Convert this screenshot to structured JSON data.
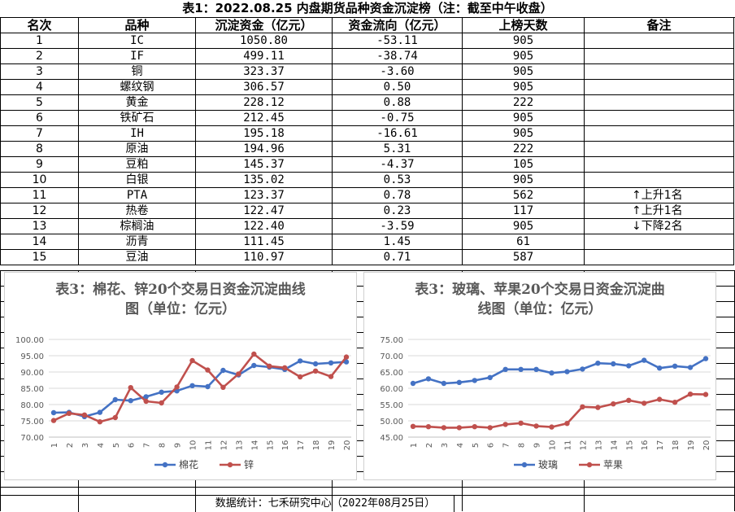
{
  "title": "表1：2022.08.25 内盘期货品种资金沉淀榜（注：截至中午收盘）",
  "headers": [
    "名次",
    "品种",
    "沉淀资金（亿元）",
    "资金流向（亿元）",
    "上榜天数",
    "备注"
  ],
  "rows": [
    [
      "1",
      "IC",
      "1050.80",
      "-53.11",
      "905",
      ""
    ],
    [
      "2",
      "IF",
      "499.11",
      "-38.74",
      "905",
      ""
    ],
    [
      "3",
      "铜",
      "323.37",
      "-3.60",
      "905",
      ""
    ],
    [
      "4",
      "螺纹钢",
      "306.57",
      "0.50",
      "905",
      ""
    ],
    [
      "5",
      "黄金",
      "228.12",
      "0.88",
      "222",
      ""
    ],
    [
      "6",
      "铁矿石",
      "212.45",
      "-0.75",
      "905",
      ""
    ],
    [
      "7",
      "IH",
      "195.18",
      "-16.61",
      "905",
      ""
    ],
    [
      "8",
      "原油",
      "194.96",
      "5.31",
      "222",
      ""
    ],
    [
      "9",
      "豆粕",
      "145.37",
      "-4.37",
      "105",
      ""
    ],
    [
      "10",
      "白银",
      "135.02",
      "0.53",
      "905",
      ""
    ],
    [
      "11",
      "PTA",
      "123.37",
      "0.78",
      "562",
      "↑上升1名"
    ],
    [
      "12",
      "热卷",
      "122.47",
      "0.23",
      "117",
      "↑上升1名"
    ],
    [
      "13",
      "棕榈油",
      "122.40",
      "-3.59",
      "905",
      "↓下降2名"
    ],
    [
      "14",
      "沥青",
      "111.45",
      "1.45",
      "61",
      ""
    ],
    [
      "15",
      "豆油",
      "110.97",
      "0.71",
      "587",
      ""
    ]
  ],
  "footer": "数据统计：七禾研究中心（2022年08月25日）",
  "chart_data": [
    {
      "type": "line",
      "title_line1": "表3：棉花、锌20个交易日资金沉淀曲线",
      "title_line2": "图（单位：亿元）",
      "x": [
        "1",
        "2",
        "3",
        "4",
        "5",
        "6",
        "7",
        "8",
        "9",
        "10",
        "11",
        "12",
        "13",
        "14",
        "15",
        "16",
        "17",
        "18",
        "19",
        "20"
      ],
      "ylim": [
        70,
        100
      ],
      "yticks": [
        "70.00",
        "75.00",
        "80.00",
        "85.00",
        "90.00",
        "95.00",
        "100.00"
      ],
      "legend_position": "bottom",
      "series": [
        {
          "name": "棉花",
          "color": "#4472C4",
          "values": [
            77.5,
            77.6,
            76.3,
            77.6,
            81.5,
            81.2,
            82.4,
            83.8,
            84.2,
            85.8,
            85.5,
            90.5,
            89.1,
            92.0,
            91.5,
            90.8,
            93.4,
            92.5,
            92.8,
            93.1
          ]
        },
        {
          "name": "锌",
          "color": "#C0504D",
          "values": [
            75.1,
            77.3,
            76.8,
            74.7,
            76.0,
            85.2,
            81.0,
            80.5,
            85.4,
            93.5,
            90.6,
            85.3,
            89.4,
            95.5,
            91.8,
            91.3,
            88.5,
            90.3,
            88.6,
            94.6
          ]
        }
      ]
    },
    {
      "type": "line",
      "title_line1": "表3：玻璃、苹果20个交易日资金沉淀曲",
      "title_line2": "线图（单位：亿元）",
      "x": [
        "1",
        "2",
        "3",
        "4",
        "5",
        "6",
        "7",
        "8",
        "9",
        "10",
        "11",
        "12",
        "13",
        "14",
        "15",
        "16",
        "17",
        "18",
        "19",
        "20"
      ],
      "ylim": [
        45,
        75
      ],
      "yticks": [
        "45.00",
        "50.00",
        "55.00",
        "60.00",
        "65.00",
        "70.00",
        "75.00"
      ],
      "legend_position": "bottom",
      "series": [
        {
          "name": "玻璃",
          "color": "#4472C4",
          "values": [
            61.5,
            62.9,
            61.5,
            61.8,
            62.4,
            63.3,
            65.8,
            65.8,
            65.8,
            64.7,
            65.1,
            65.9,
            67.7,
            67.5,
            66.9,
            68.6,
            66.2,
            66.8,
            66.4,
            69.1
          ]
        },
        {
          "name": "苹果",
          "color": "#C0504D",
          "values": [
            48.3,
            48.2,
            47.9,
            47.9,
            48.2,
            47.9,
            48.9,
            49.3,
            48.4,
            48.1,
            49.2,
            54.3,
            54.1,
            55.2,
            56.3,
            55.4,
            56.6,
            55.7,
            58.2,
            58.1
          ]
        }
      ]
    }
  ]
}
